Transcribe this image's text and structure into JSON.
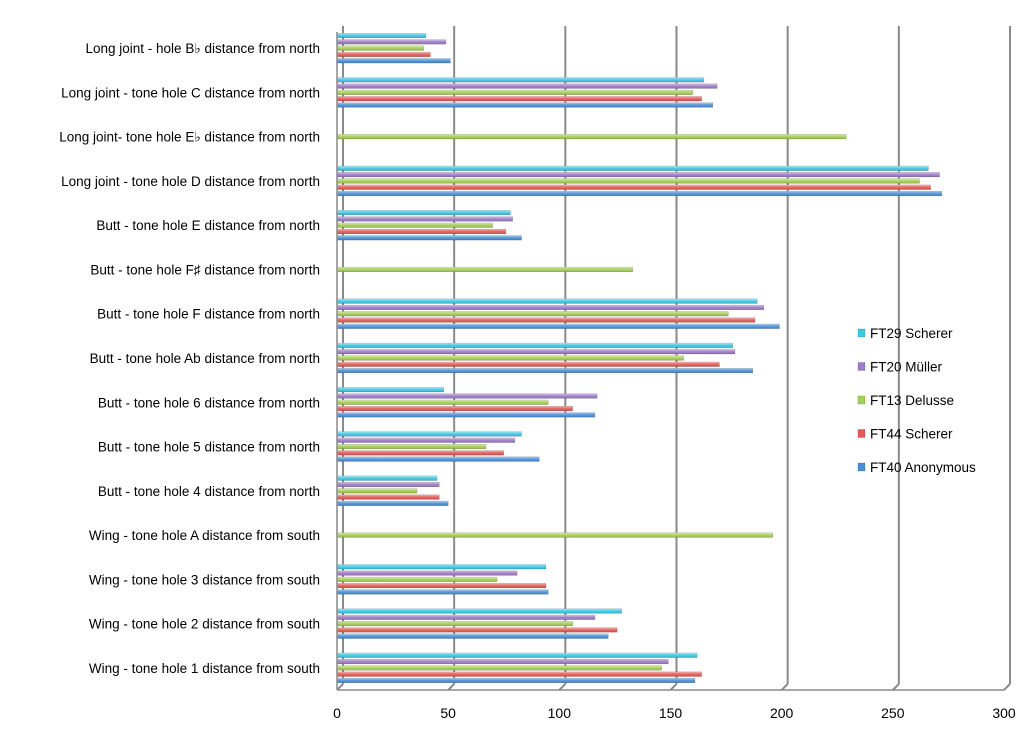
{
  "chart_data": {
    "type": "bar",
    "orientation": "horizontal",
    "title": "",
    "xlabel": "",
    "ylabel": "",
    "xlim": [
      0,
      300
    ],
    "xticks": [
      0,
      50,
      100,
      150,
      200,
      250,
      300
    ],
    "grid": true,
    "legend_position": "right",
    "categories": [
      "Long joint - hole B♭ distance from north",
      "Long joint - tone hole C distance from north",
      "Long joint- tone hole E♭ distance from north",
      "Long joint - tone hole D distance from north",
      "Butt - tone hole E distance from north",
      "Butt - tone hole F♯ distance from north",
      "Butt - tone hole F distance from north",
      "Butt - tone hole Ab distance from north",
      "Butt - tone hole 6 distance from north",
      "Butt - tone hole 5 distance from north",
      "Butt - tone hole 4 distance from north",
      "Wing - tone hole A distance from south",
      "Wing - tone hole 3 distance from south",
      "Wing - tone hole 2 distance from south",
      "Wing - tone hole 1 distance from south"
    ],
    "series": [
      {
        "name": "FT29 Scherer",
        "color": "#3fc8e6",
        "values": [
          40,
          165,
          null,
          266,
          78,
          null,
          189,
          178,
          48,
          83,
          45,
          0,
          94,
          128,
          162
        ]
      },
      {
        "name": "FT20 Müller",
        "color": "#9e7cc9",
        "values": [
          49,
          171,
          null,
          271,
          79,
          null,
          192,
          179,
          117,
          80,
          46,
          0,
          81,
          116,
          149
        ]
      },
      {
        "name": "FT13 Delusse",
        "color": "#a6cf55",
        "values": [
          39,
          160,
          229,
          262,
          70,
          133,
          176,
          156,
          95,
          67,
          36,
          196,
          72,
          106,
          146
        ]
      },
      {
        "name": "FT44 Scherer",
        "color": "#e65a55",
        "values": [
          42,
          164,
          null,
          267,
          76,
          null,
          188,
          172,
          106,
          75,
          46,
          0,
          94,
          126,
          164
        ]
      },
      {
        "name": "FT40 Anonymous",
        "color": "#4a90d9",
        "values": [
          51,
          169,
          null,
          272,
          83,
          null,
          199,
          187,
          116,
          91,
          50,
          0,
          95,
          122,
          161
        ]
      }
    ],
    "legend_order": [
      "FT29 Scherer",
      "FT20 Müller",
      "FT13 Delusse",
      "FT44 Scherer",
      "FT40 Anonymous"
    ]
  }
}
